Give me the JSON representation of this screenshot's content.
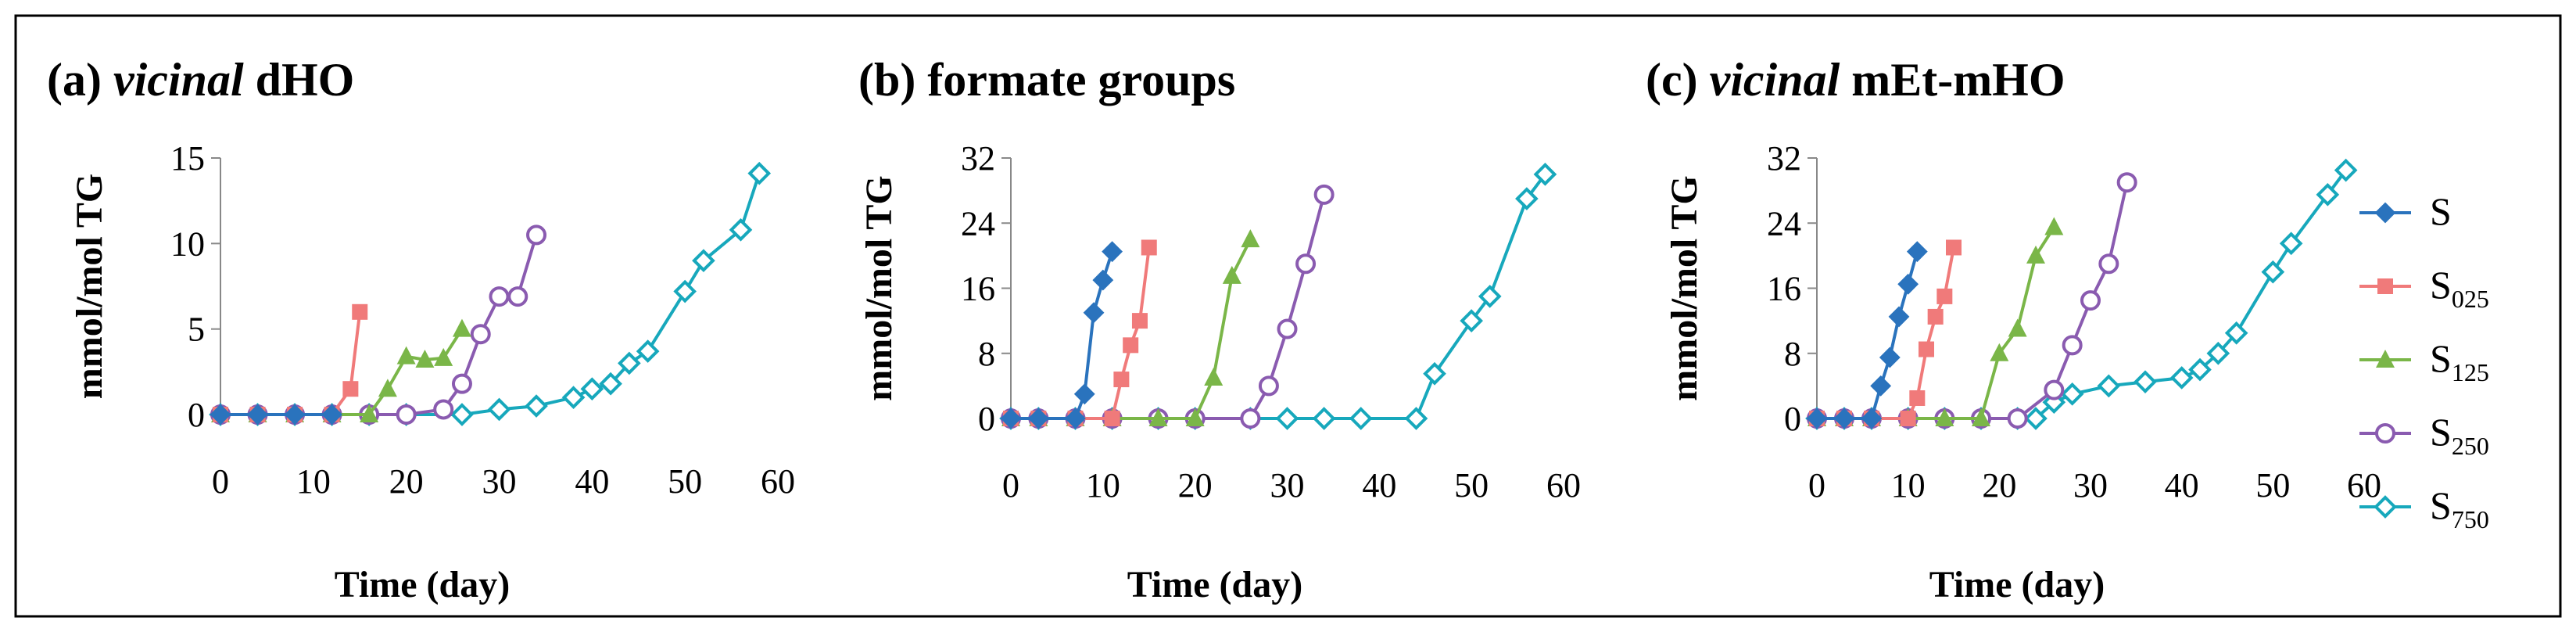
{
  "figure_labels": {
    "panel_a": {
      "prefix": "(a) ",
      "italic": "vicinal",
      "suffix": " dHO"
    },
    "panel_b": {
      "prefix": "(b) formate groups",
      "italic": "",
      "suffix": ""
    },
    "panel_c": {
      "prefix": "(c) ",
      "italic": "vicinal",
      "suffix": " mEt-mHO"
    }
  },
  "legend": [
    {
      "main": "S",
      "sub": ""
    },
    {
      "main": "S",
      "sub": "025"
    },
    {
      "main": "S",
      "sub": "125"
    },
    {
      "main": "S",
      "sub": "250"
    },
    {
      "main": "S",
      "sub": "750"
    }
  ],
  "series_colors": [
    "#2a73bd",
    "#f07a7a",
    "#7ab648",
    "#8a5bb0",
    "#17a8bc"
  ],
  "chart_data": [
    {
      "type": "line",
      "title": "(a) vicinal dHO",
      "xlabel": "Time (day)",
      "ylabel": "mmol/mol TG",
      "xlim": [
        0,
        60
      ],
      "ylim": [
        0,
        15
      ],
      "xticks": [
        0,
        10,
        20,
        30,
        40,
        50,
        60
      ],
      "yticks": [
        0,
        5,
        10,
        15
      ],
      "series": [
        {
          "name": "S",
          "x": [
            0,
            4,
            8,
            12
          ],
          "y": [
            0,
            0,
            0,
            0
          ]
        },
        {
          "name": "S025",
          "x": [
            0,
            4,
            8,
            12,
            14,
            15
          ],
          "y": [
            0,
            0,
            0,
            0,
            1.5,
            6
          ]
        },
        {
          "name": "S125",
          "x": [
            0,
            4,
            8,
            12,
            16,
            18,
            20,
            22,
            24,
            26
          ],
          "y": [
            0,
            0,
            0,
            0,
            0,
            1.5,
            3.4,
            3.2,
            3.3,
            5
          ]
        },
        {
          "name": "S250",
          "x": [
            0,
            4,
            8,
            12,
            16,
            20,
            24,
            26,
            28,
            30,
            32,
            34
          ],
          "y": [
            0,
            0,
            0,
            0,
            0,
            0,
            0.3,
            1.8,
            4.7,
            6.9,
            6.9,
            10.5
          ]
        },
        {
          "name": "S750",
          "x": [
            0,
            4,
            8,
            12,
            16,
            20,
            26,
            30,
            34,
            38,
            40,
            42,
            44,
            46,
            50,
            52,
            56,
            58
          ],
          "y": [
            0,
            0,
            0,
            0,
            0,
            0,
            0,
            0.3,
            0.5,
            1.0,
            1.5,
            1.8,
            3.0,
            3.7,
            7.2,
            9.0,
            10.8,
            14.1
          ]
        }
      ]
    },
    {
      "type": "line",
      "title": "(b) formate groups",
      "xlabel": "Time (day)",
      "ylabel": "mmol/mol TG",
      "xlim": [
        0,
        60
      ],
      "ylim": [
        0,
        32
      ],
      "xticks": [
        0,
        10,
        20,
        30,
        40,
        50,
        60
      ],
      "yticks": [
        0,
        8,
        16,
        24,
        32
      ],
      "series": [
        {
          "name": "S",
          "x": [
            0,
            3,
            7,
            8,
            9,
            10,
            11
          ],
          "y": [
            0,
            0,
            0,
            3,
            13,
            17,
            20.5
          ]
        },
        {
          "name": "S025",
          "x": [
            0,
            3,
            7,
            11,
            12,
            13,
            14,
            15
          ],
          "y": [
            0,
            0,
            0,
            0,
            4.8,
            9,
            12,
            21
          ]
        },
        {
          "name": "S125",
          "x": [
            0,
            3,
            7,
            11,
            16,
            20,
            22,
            24,
            26
          ],
          "y": [
            0,
            0,
            0,
            0,
            0,
            0,
            5,
            17.5,
            22
          ]
        },
        {
          "name": "S250",
          "x": [
            0,
            3,
            7,
            11,
            16,
            20,
            26,
            28,
            30,
            32,
            34
          ],
          "y": [
            0,
            0,
            0,
            0,
            0,
            0,
            0,
            4,
            11,
            19,
            27.5
          ]
        },
        {
          "name": "S750",
          "x": [
            0,
            3,
            7,
            11,
            16,
            20,
            26,
            30,
            34,
            38,
            44,
            46,
            50,
            52,
            56,
            58
          ],
          "y": [
            0,
            0,
            0,
            0,
            0,
            0,
            0,
            0,
            0,
            0,
            0,
            5.5,
            12,
            15,
            27,
            30
          ]
        }
      ]
    },
    {
      "type": "line",
      "title": "(c) vicinal mEt-mHO",
      "xlabel": "Time (day)",
      "ylabel": "mmol/mol TG",
      "xlim": [
        0,
        60
      ],
      "ylim": [
        0,
        32
      ],
      "xticks": [
        0,
        10,
        20,
        30,
        40,
        50,
        60
      ],
      "yticks": [
        0,
        8,
        16,
        24,
        32
      ],
      "series": [
        {
          "name": "S",
          "x": [
            0,
            3,
            6,
            7,
            8,
            9,
            10,
            11
          ],
          "y": [
            0,
            0,
            0,
            4,
            7.5,
            12.5,
            16.5,
            20.5
          ]
        },
        {
          "name": "S025",
          "x": [
            0,
            3,
            6,
            10,
            11,
            12,
            13,
            14,
            15
          ],
          "y": [
            0,
            0,
            0,
            0,
            2.5,
            8.5,
            12.5,
            15,
            21
          ]
        },
        {
          "name": "S125",
          "x": [
            0,
            3,
            6,
            10,
            14,
            18,
            20,
            22,
            24,
            26
          ],
          "y": [
            0,
            0,
            0,
            0,
            0,
            0,
            8,
            11,
            20,
            23.5
          ]
        },
        {
          "name": "S250",
          "x": [
            0,
            3,
            6,
            10,
            14,
            18,
            22,
            26,
            28,
            30,
            32,
            34
          ],
          "y": [
            0,
            0,
            0,
            0,
            0,
            0,
            0,
            3.5,
            9,
            14.5,
            19,
            29
          ]
        },
        {
          "name": "S750",
          "x": [
            0,
            3,
            6,
            10,
            14,
            18,
            22,
            24,
            26,
            28,
            32,
            36,
            40,
            42,
            44,
            46,
            50,
            52,
            56,
            58
          ],
          "y": [
            0,
            0,
            0,
            0,
            0,
            0,
            0,
            0,
            2,
            3,
            4,
            4.5,
            5,
            6,
            8,
            10.5,
            18,
            21.5,
            27.5,
            30.5
          ]
        }
      ]
    }
  ]
}
